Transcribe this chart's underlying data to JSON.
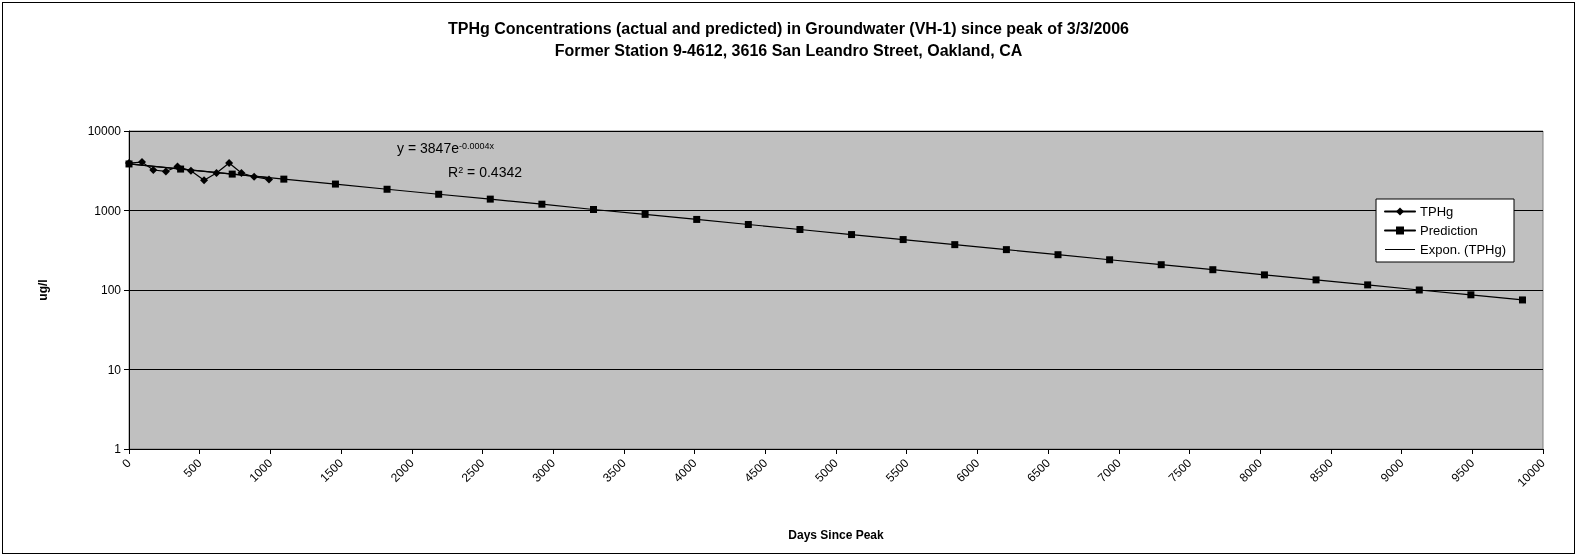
{
  "chart_data": {
    "type": "line",
    "title": "TPHg Concentrations (actual and predicted) in Groundwater (VH-1) since peak of 3/3/2006",
    "subtitle": "Former Station 9-4612, 3616 San Leandro Street, Oakland, CA",
    "xlabel": "Days Since Peak",
    "ylabel": "ug/l",
    "series": [
      {
        "name": "TPHg",
        "color": "#000000",
        "marker": "diamond",
        "x": [
          0,
          92,
          172,
          261,
          343,
          438,
          531,
          619,
          708,
          795,
          885,
          990
        ],
        "values": [
          3950,
          4060,
          3230,
          3100,
          3580,
          3160,
          2400,
          2960,
          3950,
          2960,
          2660,
          2460
        ]
      },
      {
        "name": "Prediction",
        "color": "#000000",
        "marker": "square",
        "x": [
          0,
          365,
          730,
          1095,
          1460,
          1825,
          2190,
          2555,
          2920,
          3285,
          3650,
          4015,
          4380,
          4745,
          5110,
          5475,
          5840,
          6205,
          6570,
          6935,
          7300,
          7665,
          8030,
          8395,
          8760,
          9125,
          9490,
          9855
        ],
        "values": [
          3850,
          3320,
          2870,
          2480,
          2150,
          1850,
          1600,
          1390,
          1200,
          1030,
          894,
          772,
          667,
          577,
          498,
          431,
          372,
          322,
          278,
          240,
          208,
          180,
          155,
          134,
          116,
          100,
          87,
          75
        ]
      },
      {
        "name": "Expon. (TPHg)",
        "color": "#000000",
        "marker": "none",
        "x": [
          0,
          990
        ],
        "values": [
          3850,
          2590
        ]
      }
    ],
    "annotations": [
      "y = 3847e$^{-0.0004x}$",
      "R$^{2}$ = 0.4342"
    ],
    "xlim": [
      0,
      10000
    ],
    "xticks": [
      0,
      500,
      1000,
      1500,
      2000,
      2500,
      3000,
      3500,
      4000,
      4500,
      5000,
      5500,
      6000,
      6500,
      7000,
      7500,
      8000,
      8500,
      9000,
      9500,
      10000
    ],
    "ylim": [
      1,
      10000
    ],
    "yticks": [
      1,
      10,
      100,
      1000,
      10000
    ],
    "log": "y",
    "grid": "y",
    "legend": "right",
    "line_style": "solid"
  }
}
